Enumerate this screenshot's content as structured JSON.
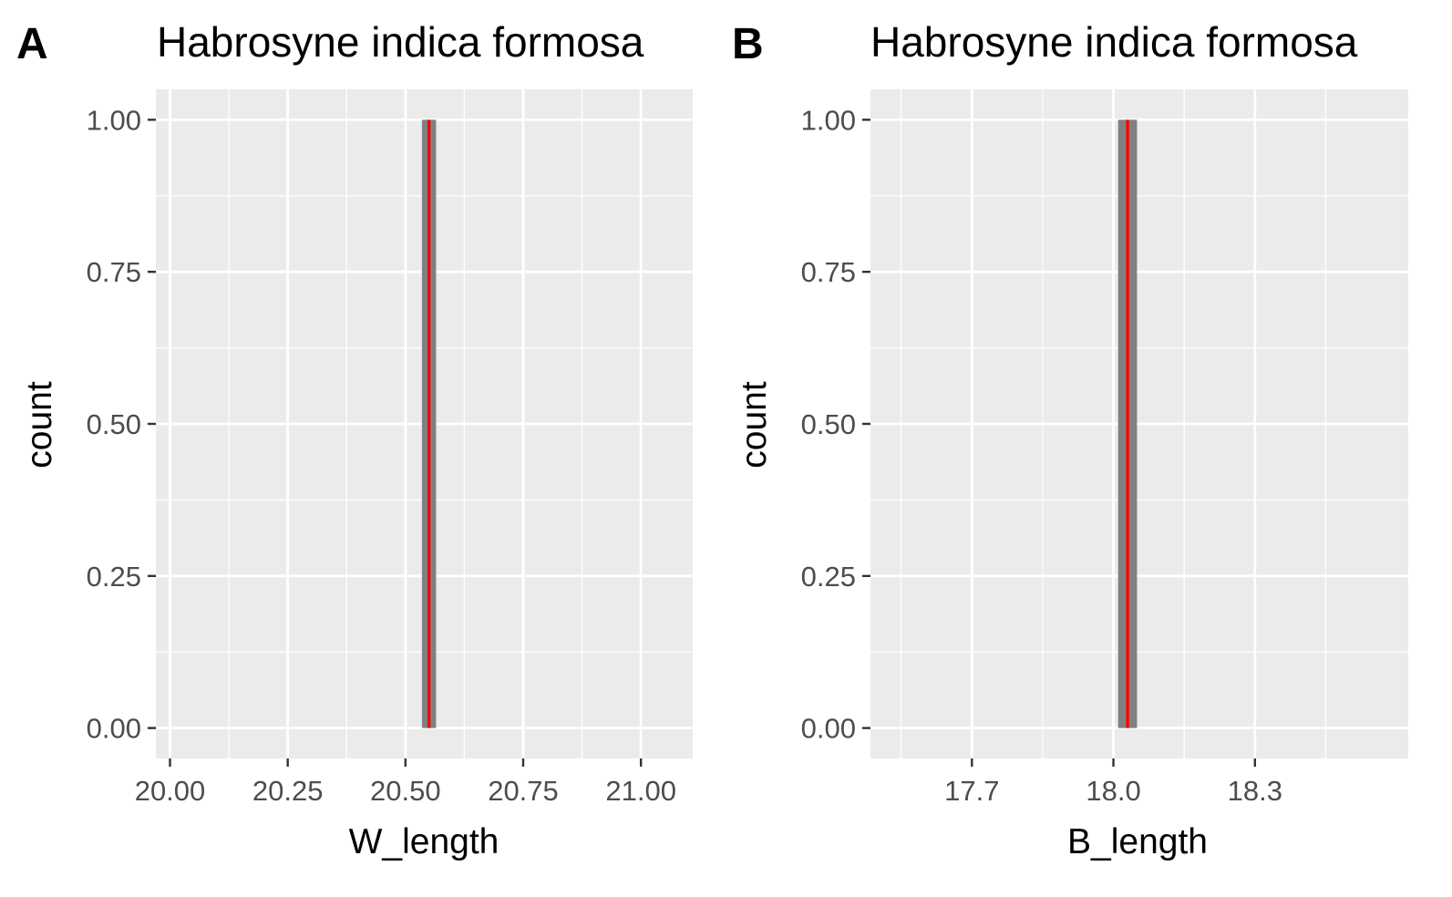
{
  "chart_data": [
    {
      "type": "histogram",
      "panel_label": "A",
      "title": "Habrosyne indica formosa",
      "xlabel": "W_length",
      "ylabel": "count",
      "xlim": [
        19.97,
        21.11
      ],
      "ylim": [
        -0.05,
        1.05
      ],
      "x_ticks": [
        20.0,
        20.25,
        20.5,
        20.75,
        21.0
      ],
      "x_tick_labels": [
        "20.00",
        "20.25",
        "20.50",
        "20.75",
        "21.00"
      ],
      "y_ticks": [
        0,
        0.25,
        0.5,
        0.75,
        1
      ],
      "y_tick_labels": [
        "0.00",
        "0.25",
        "0.50",
        "0.75",
        "1.00"
      ],
      "bars": [
        {
          "x0": 20.535,
          "x1": 20.565,
          "count": 1
        }
      ],
      "reference_line": {
        "x": 20.55,
        "color": "#ff0000"
      },
      "bar_color": "#808080",
      "panel_background": "#ebebeb",
      "grid": true
    },
    {
      "type": "histogram",
      "panel_label": "B",
      "title": "Habrosyne indica formosa",
      "xlabel": "B_length",
      "ylabel": "count",
      "xlim": [
        17.485,
        18.625
      ],
      "ylim": [
        -0.05,
        1.05
      ],
      "x_ticks": [
        17.7,
        18.0,
        18.3
      ],
      "x_tick_labels": [
        "17.7",
        "18.0",
        "18.3"
      ],
      "y_ticks": [
        0,
        0.25,
        0.5,
        0.75,
        1
      ],
      "y_tick_labels": [
        "0.00",
        "0.25",
        "0.50",
        "0.75",
        "1.00"
      ],
      "bars": [
        {
          "x0": 18.01,
          "x1": 18.05,
          "count": 1
        }
      ],
      "reference_line": {
        "x": 18.03,
        "color": "#ff0000"
      },
      "bar_color": "#808080",
      "panel_background": "#ebebeb",
      "grid": true
    }
  ]
}
